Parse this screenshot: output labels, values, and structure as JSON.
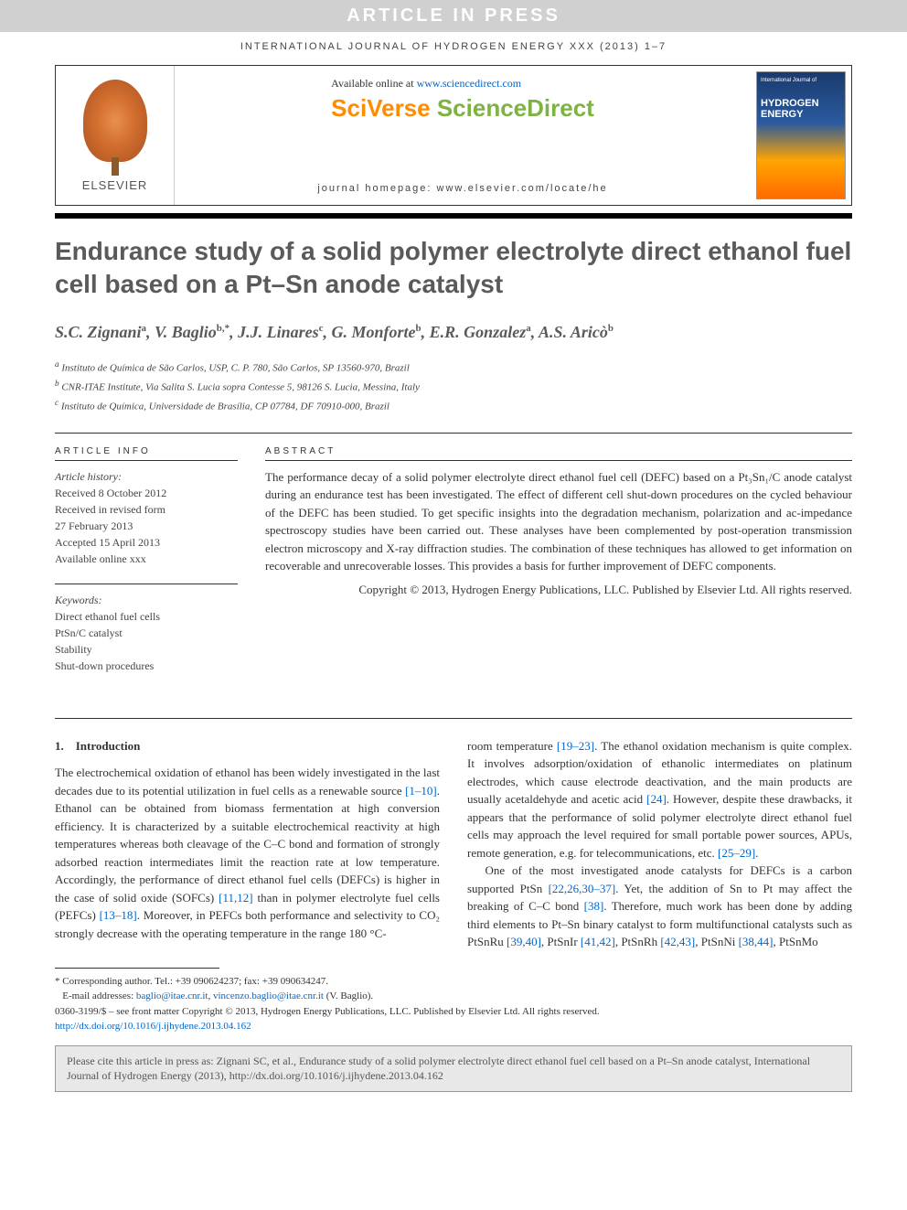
{
  "banner": "ARTICLE IN PRESS",
  "journal_header": "INTERNATIONAL JOURNAL OF HYDROGEN ENERGY XXX (2013) 1–7",
  "top": {
    "elsevier": "ELSEVIER",
    "available_prefix": "Available online at ",
    "available_link": "www.sciencedirect.com",
    "sciverse_1": "SciVerse ",
    "sciverse_2": "ScienceDirect",
    "homepage": "journal homepage: www.elsevier.com/locate/he",
    "cover_small": "International Journal of",
    "cover_title": "HYDROGEN ENERGY"
  },
  "title": "Endurance study of a solid polymer electrolyte direct ethanol fuel cell based on a Pt–Sn anode catalyst",
  "authors_html": "S.C. Zignani<sup>a</sup>, V. Baglio<sup>b,*</sup>, J.J. Linares<sup>c</sup>, G. Monforte<sup>b</sup>, E.R. Gonzalez<sup>a</sup>, A.S. Aricò<sup>b</sup>",
  "affiliations": {
    "a": "Instituto de Química de São Carlos, USP, C. P. 780, São Carlos, SP 13560-970, Brazil",
    "b": "CNR-ITAE Institute, Via Salita S. Lucia sopra Contesse 5, 98126 S. Lucia, Messina, Italy",
    "c": "Instituto de Química, Universidade de Brasília, CP 07784, DF 70910-000, Brazil"
  },
  "info": {
    "label": "ARTICLE INFO",
    "history_label": "Article history:",
    "h1": "Received 8 October 2012",
    "h2": "Received in revised form",
    "h3": "27 February 2013",
    "h4": "Accepted 15 April 2013",
    "h5": "Available online xxx",
    "kw_label": "Keywords:",
    "k1": "Direct ethanol fuel cells",
    "k2": "PtSn/C catalyst",
    "k3": "Stability",
    "k4": "Shut-down procedures"
  },
  "abstract": {
    "label": "ABSTRACT",
    "text": "The performance decay of a solid polymer electrolyte direct ethanol fuel cell (DEFC) based on a Pt₃Sn₁/C anode catalyst during an endurance test has been investigated. The effect of different cell shut-down procedures on the cycled behaviour of the DEFC has been studied. To get specific insights into the degradation mechanism, polarization and ac-impedance spectroscopy studies have been carried out. These analyses have been complemented by post-operation transmission electron microscopy and X-ray diffraction studies. The combination of these techniques has allowed to get information on recoverable and unrecoverable losses. This provides a basis for further improvement of DEFC components.",
    "copyright": "Copyright © 2013, Hydrogen Energy Publications, LLC. Published by Elsevier Ltd. All rights reserved."
  },
  "body": {
    "sec_num": "1.",
    "sec_title": "Introduction",
    "col1_p1a": "The electrochemical oxidation of ethanol has been widely investigated in the last decades due to its potential utilization in fuel cells as a renewable source ",
    "ref1": "[1–10]",
    "col1_p1b": ". Ethanol can be obtained from biomass fermentation at high conversion efficiency. It is characterized by a suitable electrochemical reactivity at high temperatures whereas both cleavage of the C–C bond and formation of strongly adsorbed reaction intermediates limit the reaction rate at low temperature. Accordingly, the performance of direct ethanol fuel cells (DEFCs) is higher in the case of solid oxide (SOFCs) ",
    "ref2": "[11,12]",
    "col1_p1c": " than in polymer electrolyte fuel cells (PEFCs) ",
    "ref3": "[13–18]",
    "col1_p1d": ". Moreover, in PEFCs both performance and selectivity to CO₂ strongly decrease with the operating temperature in the range 180 °C-",
    "col2_p1a": "room temperature ",
    "ref4": "[19–23]",
    "col2_p1b": ". The ethanol oxidation mechanism is quite complex. It involves adsorption/oxidation of ethanolic intermediates on platinum electrodes, which cause electrode deactivation, and the main products are usually acetaldehyde and acetic acid ",
    "ref5": "[24]",
    "col2_p1c": ". However, despite these drawbacks, it appears that the performance of solid polymer electrolyte direct ethanol fuel cells may approach the level required for small portable power sources, APUs, remote generation, e.g. for telecommunications, etc. ",
    "ref6": "[25–29]",
    "col2_p1d": ".",
    "col2_p2a": "One of the most investigated anode catalysts for DEFCs is a carbon supported PtSn ",
    "ref7": "[22,26,30–37]",
    "col2_p2b": ". Yet, the addition of Sn to Pt may affect the breaking of C–C bond ",
    "ref8": "[38]",
    "col2_p2c": ". Therefore, much work has been done by adding third elements to Pt–Sn binary catalyst to form multifunctional catalysts such as PtSnRu ",
    "ref9": "[39,40]",
    "col2_p2d": ", PtSnIr ",
    "ref10": "[41,42]",
    "col2_p2e": ", PtSnRh ",
    "ref11": "[42,43]",
    "col2_p2f": ", PtSnNi ",
    "ref12": "[38,44]",
    "col2_p2g": ", PtSnMo"
  },
  "footnotes": {
    "corr": "* Corresponding author. Tel.: +39 090624237; fax: +39 090634247.",
    "email_label": "E-mail addresses: ",
    "email1": "baglio@itae.cnr.it",
    "email2": "vincenzo.baglio@itae.cnr.it",
    "email_suffix": " (V. Baglio).",
    "issn": "0360-3199/$ – see front matter Copyright © 2013, Hydrogen Energy Publications, LLC. Published by Elsevier Ltd. All rights reserved.",
    "doi": "http://dx.doi.org/10.1016/j.ijhydene.2013.04.162"
  },
  "citation": "Please cite this article in press as: Zignani SC, et al., Endurance study of a solid polymer electrolyte direct ethanol fuel cell based on a Pt–Sn anode catalyst, International Journal of Hydrogen Energy (2013), http://dx.doi.org/10.1016/j.ijhydene.2013.04.162"
}
